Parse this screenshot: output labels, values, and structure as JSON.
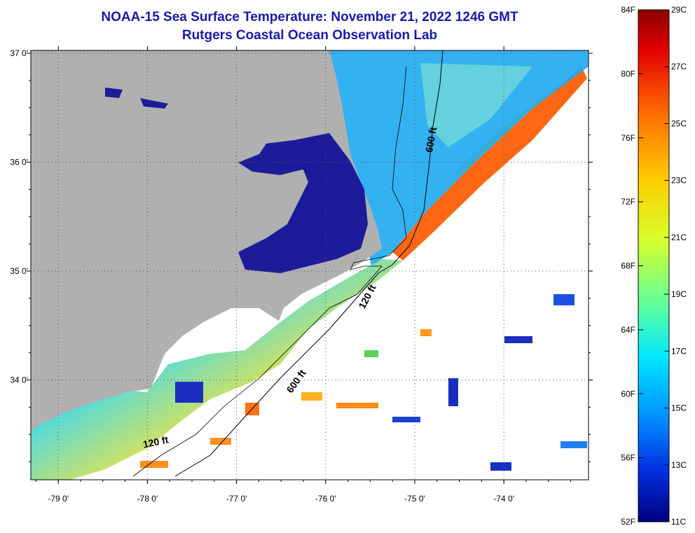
{
  "title": "NOAA-15 Sea Surface Temperature:  November 21, 2022 1246 GMT",
  "subtitle": "Rutgers Coastal Ocean Observation Lab",
  "map": {
    "lat_labels": [
      {
        "text": "37 0'",
        "lat": 37.0
      },
      {
        "text": "36 0'",
        "lat": 36.0
      },
      {
        "text": "35 0'",
        "lat": 35.0
      },
      {
        "text": "34 0'",
        "lat": 34.0
      }
    ],
    "lon_labels": [
      {
        "text": "-79 0'",
        "lon": -79.0
      },
      {
        "text": "-78 0'",
        "lon": -78.0
      },
      {
        "text": "-77 0'",
        "lon": -77.0
      },
      {
        "text": "-76 0'",
        "lon": -76.0
      },
      {
        "text": "-75 0'",
        "lon": -75.0
      },
      {
        "text": "-74 0'",
        "lon": -74.0
      }
    ],
    "contour_labels": [
      {
        "text": "600 ft",
        "lon": -74.78,
        "lat": 36.2,
        "rotate": -80
      },
      {
        "text": "120 ft",
        "lon": -75.5,
        "lat": 34.75,
        "rotate": -62
      },
      {
        "text": "600 ft",
        "lon": -76.3,
        "lat": 33.97,
        "rotate": -55
      },
      {
        "text": "120 ft",
        "lon": -77.9,
        "lat": 33.4,
        "rotate": -12
      }
    ],
    "colors": {
      "land": "#b0b0b0",
      "sound": "#1c1c9a",
      "ocean": "#ffffff"
    }
  },
  "colorbar": {
    "f_labels": [
      "84F",
      "80F",
      "76F",
      "72F",
      "68F",
      "64F",
      "60F",
      "56F",
      "52F"
    ],
    "c_labels": [
      "29C",
      "27C",
      "25C",
      "23C",
      "21C",
      "19C",
      "17C",
      "15C",
      "13C",
      "11C"
    ],
    "range_c": [
      11,
      29
    ]
  }
}
